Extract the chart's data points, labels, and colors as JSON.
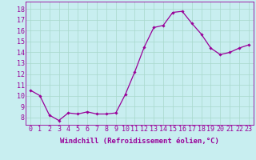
{
  "x": [
    0,
    1,
    2,
    3,
    4,
    5,
    6,
    7,
    8,
    9,
    10,
    11,
    12,
    13,
    14,
    15,
    16,
    17,
    18,
    19,
    20,
    21,
    22,
    23
  ],
  "y": [
    10.5,
    10.0,
    8.2,
    7.7,
    8.4,
    8.3,
    8.5,
    8.3,
    8.3,
    8.4,
    10.1,
    12.2,
    14.5,
    16.3,
    16.5,
    17.7,
    17.8,
    16.7,
    15.7,
    14.4,
    13.8,
    14.0,
    14.4,
    14.7
  ],
  "line_color": "#990099",
  "marker": "D",
  "marker_size": 1.8,
  "xlabel": "Windchill (Refroidissement éolien,°C)",
  "ylabel_ticks": [
    8,
    9,
    10,
    11,
    12,
    13,
    14,
    15,
    16,
    17,
    18
  ],
  "ylim": [
    7.3,
    18.7
  ],
  "xlim": [
    -0.5,
    23.5
  ],
  "bg_color": "#c8eef0",
  "grid_color": "#a8d8cc",
  "xlabel_fontsize": 6.5,
  "tick_fontsize": 6.0,
  "linewidth": 0.9
}
